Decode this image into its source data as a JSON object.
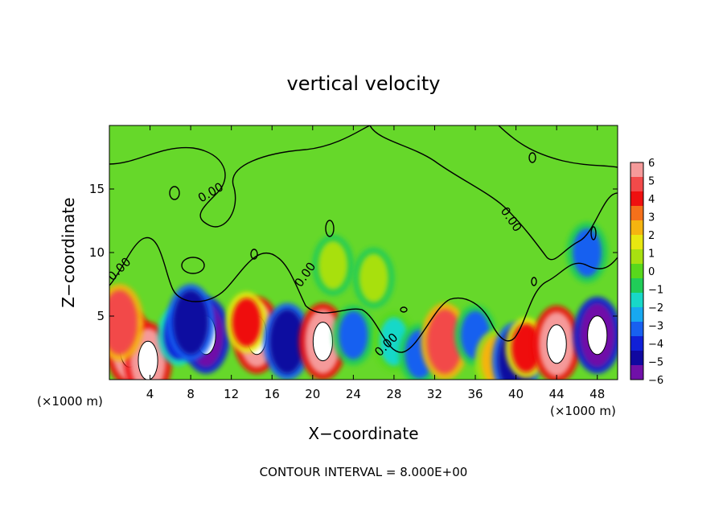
{
  "chart_data": {
    "type": "heatmap",
    "title": "vertical velocity",
    "xlabel": "X−coordinate",
    "ylabel": "Z−coordinate",
    "x_unit_left": "(×1000 m)",
    "x_unit_right": "(×1000 m)",
    "xlim": [
      0,
      50
    ],
    "ylim": [
      0,
      20
    ],
    "xticks": [
      4,
      8,
      12,
      16,
      20,
      24,
      28,
      32,
      36,
      40,
      44,
      48
    ],
    "yticks": [
      5,
      10,
      15
    ],
    "contour_label": "0.00",
    "contour_interval_text": "CONTOUR INTERVAL = 8.000E+00",
    "colorbar": {
      "ticks": [
        "6",
        "5",
        "4",
        "3",
        "2",
        "1",
        "0",
        "−1",
        "−2",
        "−3",
        "−4",
        "−5",
        "−6"
      ],
      "colors": [
        "#f59a9a",
        "#f24a4a",
        "#ef1010",
        "#f5701a",
        "#f5b410",
        "#e8e810",
        "#a8e010",
        "#58d81c",
        "#20cc58",
        "#18d8c8",
        "#18a8f0",
        "#1860f0",
        "#1020d8",
        "#1008a0",
        "#7010a8"
      ]
    },
    "cells": [
      {
        "x": 2,
        "z": 2.5,
        "v": 6
      },
      {
        "x": 3.8,
        "z": 1.5,
        "v": 6
      },
      {
        "x": 1,
        "z": 4.5,
        "v": 5
      },
      {
        "x": 6.8,
        "z": 3.5,
        "v": -4
      },
      {
        "x": 9.5,
        "z": 3.5,
        "v": -6
      },
      {
        "x": 8,
        "z": 4.5,
        "v": -5
      },
      {
        "x": 14.5,
        "z": 3.5,
        "v": 6
      },
      {
        "x": 13.5,
        "z": 4.5,
        "v": 4
      },
      {
        "x": 17.5,
        "z": 3,
        "v": -5
      },
      {
        "x": 21,
        "z": 3,
        "v": 6
      },
      {
        "x": 24,
        "z": 3.5,
        "v": -3
      },
      {
        "x": 28,
        "z": 3,
        "v": -2
      },
      {
        "x": 30.5,
        "z": 2,
        "v": -3
      },
      {
        "x": 33,
        "z": 3,
        "v": 5
      },
      {
        "x": 36,
        "z": 3.5,
        "v": -3
      },
      {
        "x": 38,
        "z": 1.5,
        "v": 3
      },
      {
        "x": 40,
        "z": 1.5,
        "v": -5
      },
      {
        "x": 41,
        "z": 2.5,
        "v": 4
      },
      {
        "x": 44,
        "z": 2.8,
        "v": 6
      },
      {
        "x": 48,
        "z": 3.5,
        "v": -6
      },
      {
        "x": 47,
        "z": 10,
        "v": -3
      },
      {
        "x": 22,
        "z": 9,
        "v": 1
      },
      {
        "x": 26,
        "z": 8,
        "v": 1
      }
    ]
  }
}
